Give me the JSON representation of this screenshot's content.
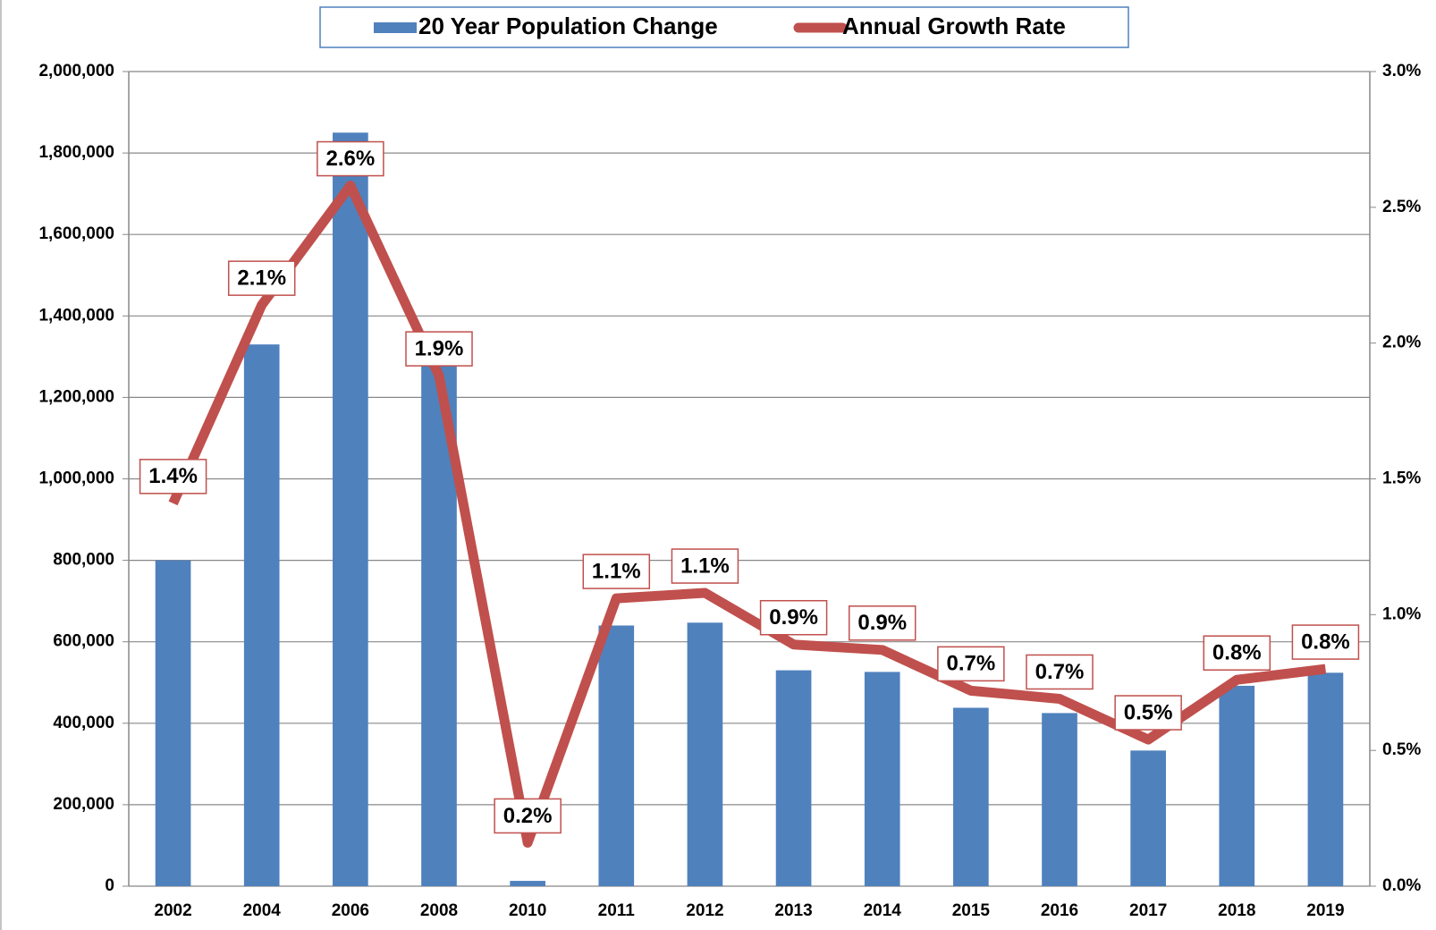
{
  "chart_data": {
    "type": "bar-line",
    "categories": [
      "2002",
      "2004",
      "2006",
      "2008",
      "2010",
      "2011",
      "2012",
      "2013",
      "2014",
      "2015",
      "2016",
      "2017",
      "2018",
      "2019"
    ],
    "series": [
      {
        "name": "20 Year Population Change",
        "color": "#4f81bd",
        "type": "bar",
        "values": [
          800000,
          1330000,
          1850000,
          1290000,
          13000,
          640000,
          647000,
          530000,
          526000,
          438000,
          425000,
          333000,
          492000,
          524000
        ]
      },
      {
        "name": "Annual Growth Rate",
        "color": "#c0504d",
        "type": "line",
        "axis": "y2",
        "values": [
          1.41,
          2.14,
          2.58,
          1.88,
          0.16,
          1.06,
          1.08,
          0.89,
          0.87,
          0.72,
          0.69,
          0.54,
          0.76,
          0.8
        ],
        "value_labels": [
          "1.4%",
          "2.1%",
          "2.6%",
          "1.9%",
          "0.2%",
          "1.1%",
          "1.1%",
          "0.9%",
          "0.9%",
          "0.7%",
          "0.7%",
          "0.5%",
          "0.8%",
          "0.8%"
        ]
      }
    ],
    "ylim": [
      0,
      2000000
    ],
    "yticks": [
      0,
      {
        "value": 200000,
        "label": "200,000"
      },
      {
        "value": 400000,
        "label": "400,000"
      },
      {
        "value": 600000,
        "label": "600,000"
      },
      {
        "value": 800000,
        "label": "800,000"
      },
      {
        "value": 1000000,
        "label": "1,000,000"
      },
      {
        "value": 1200000,
        "label": "1,200,000"
      },
      {
        "value": 1400000,
        "label": "1,400,000"
      },
      {
        "value": 1600000,
        "label": "1,600,000"
      },
      {
        "value": 1800000,
        "label": "1,800,000"
      },
      {
        "value": 2000000,
        "label": "2,000,000"
      }
    ],
    "y2lim": [
      0,
      3
    ],
    "y2ticks": [
      {
        "value": 0,
        "label": "0.0%"
      },
      {
        "value": 0.5,
        "label": "0.5%"
      },
      {
        "value": 1,
        "label": "1.0%"
      },
      {
        "value": 1.5,
        "label": "1.5%"
      },
      {
        "value": 2,
        "label": "2.0%"
      },
      {
        "value": 2.5,
        "label": "2.5%"
      },
      {
        "value": 3,
        "label": "3.0%"
      }
    ],
    "grid": true,
    "legend": "top"
  }
}
